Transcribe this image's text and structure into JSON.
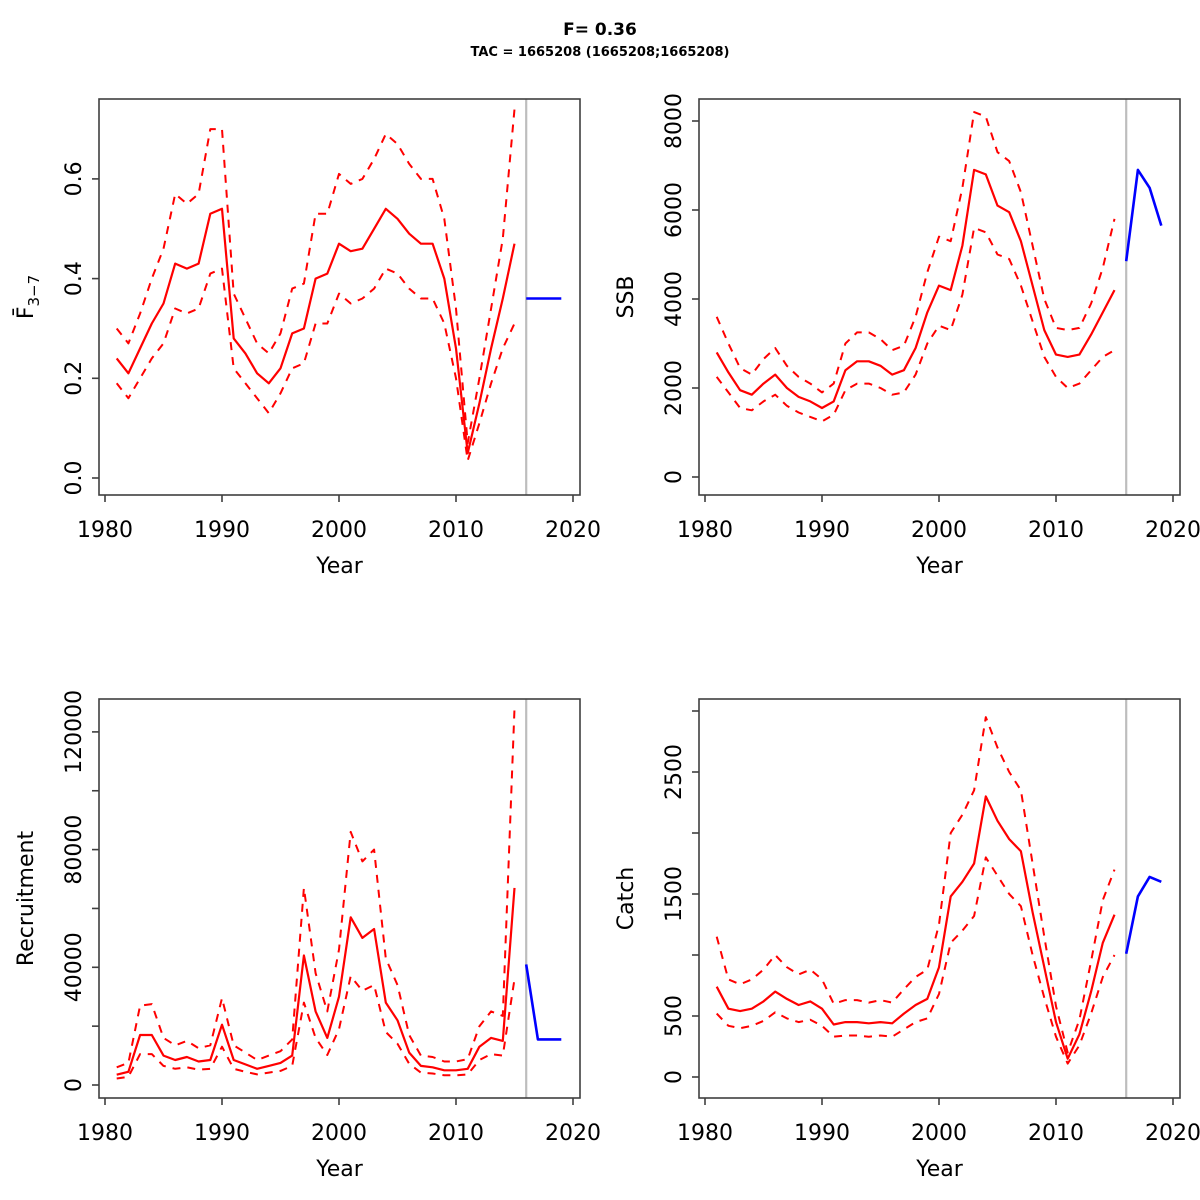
{
  "title": "F= 0.36",
  "subtitle": "TAC = 1665208 (1665208;1665208)",
  "colors": {
    "historical": "#ff0000",
    "forecast": "#0000ff",
    "divider": "#bdbdbd",
    "frame": "#3f3f3f",
    "text": "#000000"
  },
  "chart_data": [
    {
      "type": "line",
      "name": "fbar",
      "ylabel_main": "F̄",
      "ylabel_sub": "3−7",
      "xlabel": "Year",
      "legend_position": "none",
      "grid": false,
      "xlim": [
        1979.5,
        2020.6
      ],
      "ylim": [
        -0.03,
        0.76
      ],
      "xticks": [
        1980,
        1990,
        2000,
        2010,
        2020
      ],
      "yticks": [
        {
          "v": 0.0,
          "label": "0.0"
        },
        {
          "v": 0.2,
          "label": "0.2"
        },
        {
          "v": 0.4,
          "label": "0.4"
        },
        {
          "v": 0.6,
          "label": "0.6"
        }
      ],
      "years": [
        1981,
        1982,
        1983,
        1984,
        1985,
        1986,
        1987,
        1988,
        1989,
        1990,
        1991,
        1992,
        1993,
        1994,
        1995,
        1996,
        1997,
        1998,
        1999,
        2000,
        2001,
        2002,
        2003,
        2004,
        2005,
        2006,
        2007,
        2008,
        2009,
        2010,
        2011,
        2012,
        2013,
        2014,
        2015
      ],
      "median": [
        0.24,
        0.21,
        0.26,
        0.31,
        0.35,
        0.43,
        0.42,
        0.43,
        0.53,
        0.54,
        0.28,
        0.25,
        0.21,
        0.19,
        0.22,
        0.29,
        0.3,
        0.4,
        0.41,
        0.47,
        0.455,
        0.46,
        0.5,
        0.54,
        0.52,
        0.49,
        0.47,
        0.47,
        0.4,
        0.26,
        0.05,
        0.15,
        0.26,
        0.36,
        0.47
      ],
      "upper": [
        0.3,
        0.27,
        0.33,
        0.4,
        0.46,
        0.57,
        0.55,
        0.57,
        0.7,
        0.7,
        0.37,
        0.32,
        0.27,
        0.25,
        0.29,
        0.38,
        0.39,
        0.53,
        0.53,
        0.61,
        0.59,
        0.6,
        0.64,
        0.69,
        0.67,
        0.63,
        0.6,
        0.6,
        0.52,
        0.34,
        0.07,
        0.2,
        0.34,
        0.48,
        0.74
      ],
      "lower": [
        0.19,
        0.16,
        0.2,
        0.24,
        0.27,
        0.34,
        0.33,
        0.34,
        0.41,
        0.42,
        0.22,
        0.19,
        0.16,
        0.13,
        0.17,
        0.22,
        0.23,
        0.31,
        0.31,
        0.37,
        0.35,
        0.36,
        0.38,
        0.42,
        0.41,
        0.38,
        0.36,
        0.36,
        0.31,
        0.2,
        0.035,
        0.11,
        0.19,
        0.26,
        0.31
      ],
      "forecast_years": [
        2016,
        2017,
        2018,
        2019
      ],
      "forecast": [
        0.36,
        0.36,
        0.36,
        0.36
      ],
      "forecast_divider_x": 2016
    },
    {
      "type": "line",
      "name": "ssb",
      "ylabel_main": "SSB",
      "ylabel_sub": "",
      "xlabel": "Year",
      "legend_position": "none",
      "grid": false,
      "xlim": [
        1979.5,
        2020.6
      ],
      "ylim": [
        -400,
        8500
      ],
      "xticks": [
        1980,
        1990,
        2000,
        2010,
        2020
      ],
      "yticks": [
        {
          "v": 0,
          "label": "0"
        },
        {
          "v": 2000,
          "label": "2000"
        },
        {
          "v": 4000,
          "label": "4000"
        },
        {
          "v": 6000,
          "label": "6000"
        },
        {
          "v": 8000,
          "label": "8000"
        }
      ],
      "years": [
        1981,
        1982,
        1983,
        1984,
        1985,
        1986,
        1987,
        1988,
        1989,
        1990,
        1991,
        1992,
        1993,
        1994,
        1995,
        1996,
        1997,
        1998,
        1999,
        2000,
        2001,
        2002,
        2003,
        2004,
        2005,
        2006,
        2007,
        2008,
        2009,
        2010,
        2011,
        2012,
        2013,
        2014,
        2015
      ],
      "median": [
        2800,
        2350,
        1950,
        1850,
        2100,
        2300,
        2000,
        1800,
        1700,
        1550,
        1700,
        2400,
        2600,
        2600,
        2500,
        2300,
        2400,
        2900,
        3700,
        4300,
        4200,
        5200,
        6900,
        6800,
        6100,
        5950,
        5300,
        4300,
        3300,
        2750,
        2700,
        2750,
        3200,
        3700,
        4200
      ],
      "upper": [
        3600,
        3000,
        2450,
        2300,
        2650,
        2900,
        2500,
        2250,
        2100,
        1900,
        2100,
        3000,
        3250,
        3250,
        3100,
        2850,
        2950,
        3600,
        4600,
        5400,
        5300,
        6500,
        8200,
        8100,
        7300,
        7100,
        6400,
        5200,
        4000,
        3350,
        3300,
        3350,
        3900,
        4700,
        5800
      ],
      "lower": [
        2250,
        1900,
        1550,
        1500,
        1700,
        1850,
        1600,
        1450,
        1350,
        1250,
        1400,
        1950,
        2100,
        2100,
        2000,
        1850,
        1900,
        2300,
        3000,
        3400,
        3300,
        4100,
        5600,
        5500,
        5000,
        4900,
        4300,
        3500,
        2700,
        2250,
        2000,
        2100,
        2400,
        2700,
        2850
      ],
      "forecast_years": [
        2016,
        2017,
        2018,
        2019
      ],
      "forecast": [
        4850,
        6900,
        6500,
        5650
      ],
      "forecast_divider_x": 2016
    },
    {
      "type": "line",
      "name": "recruitment",
      "ylabel_main": "Recruitment",
      "ylabel_sub": "",
      "xlabel": "Year",
      "legend_position": "none",
      "grid": false,
      "xlim": [
        1979.5,
        2020.6
      ],
      "ylim": [
        -5000,
        131000
      ],
      "xticks": [
        1980,
        1990,
        2000,
        2010,
        2020
      ],
      "yticks": [
        {
          "v": 0,
          "label": "0"
        },
        {
          "v": 20000,
          "label": ""
        },
        {
          "v": 40000,
          "label": "40000"
        },
        {
          "v": 60000,
          "label": ""
        },
        {
          "v": 80000,
          "label": "80000"
        },
        {
          "v": 100000,
          "label": ""
        },
        {
          "v": 120000,
          "label": "120000"
        }
      ],
      "years": [
        1981,
        1982,
        1983,
        1984,
        1985,
        1986,
        1987,
        1988,
        1989,
        1990,
        1991,
        1992,
        1993,
        1994,
        1995,
        1996,
        1997,
        1998,
        1999,
        2000,
        2001,
        2002,
        2003,
        2004,
        2005,
        2006,
        2007,
        2008,
        2009,
        2010,
        2011,
        2012,
        2013,
        2014,
        2015
      ],
      "median": [
        3500,
        4500,
        17000,
        17000,
        10000,
        8500,
        9500,
        8000,
        8500,
        20500,
        8500,
        7000,
        5500,
        6500,
        7500,
        10000,
        44000,
        25000,
        16000,
        30000,
        57000,
        50000,
        53000,
        28000,
        22000,
        11000,
        6500,
        6000,
        5000,
        5000,
        5500,
        13000,
        16000,
        15000,
        67000
      ],
      "upper": [
        6000,
        7500,
        27000,
        27500,
        16000,
        13500,
        15000,
        12500,
        13500,
        29500,
        13500,
        11000,
        8500,
        10000,
        11500,
        15500,
        67000,
        38000,
        25000,
        46000,
        86000,
        76000,
        80000,
        43000,
        34000,
        17000,
        10000,
        9500,
        8000,
        8000,
        8800,
        20000,
        25000,
        23500,
        128000
      ],
      "lower": [
        2200,
        2800,
        10500,
        10500,
        6500,
        5500,
        6000,
        5200,
        5500,
        13000,
        5500,
        4500,
        3600,
        4200,
        4800,
        6500,
        28000,
        16000,
        10200,
        19000,
        37000,
        32000,
        34000,
        18000,
        14000,
        7200,
        4200,
        3900,
        3300,
        3300,
        3600,
        8500,
        10500,
        10000,
        36000
      ],
      "forecast_years": [
        2016,
        2017,
        2018,
        2019
      ],
      "forecast": [
        41000,
        15500,
        15500,
        15500
      ],
      "forecast_divider_x": 2016
    },
    {
      "type": "line",
      "name": "catch",
      "ylabel_main": "Catch",
      "ylabel_sub": "",
      "xlabel": "Year",
      "legend_position": "none",
      "grid": false,
      "xlim": [
        1979.5,
        2020.6
      ],
      "ylim": [
        -190,
        3100
      ],
      "xticks": [
        1980,
        1990,
        2000,
        2010,
        2020
      ],
      "yticks": [
        {
          "v": 0,
          "label": "0"
        },
        {
          "v": 500,
          "label": "500"
        },
        {
          "v": 1000,
          "label": ""
        },
        {
          "v": 1500,
          "label": "1500"
        },
        {
          "v": 2000,
          "label": ""
        },
        {
          "v": 2500,
          "label": "2500"
        },
        {
          "v": 3000,
          "label": ""
        }
      ],
      "years": [
        1981,
        1982,
        1983,
        1984,
        1985,
        1986,
        1987,
        1988,
        1989,
        1990,
        1991,
        1992,
        1993,
        1994,
        1995,
        1996,
        1997,
        1998,
        1999,
        2000,
        2001,
        2002,
        2003,
        2004,
        2005,
        2006,
        2007,
        2008,
        2009,
        2010,
        2011,
        2012,
        2013,
        2014,
        2015
      ],
      "median": [
        740,
        560,
        540,
        560,
        620,
        700,
        640,
        590,
        620,
        560,
        430,
        450,
        450,
        440,
        450,
        440,
        520,
        590,
        640,
        900,
        1480,
        1600,
        1750,
        2300,
        2100,
        1950,
        1850,
        1350,
        900,
        450,
        150,
        350,
        700,
        1100,
        1330
      ],
      "upper": [
        1150,
        800,
        760,
        800,
        880,
        1000,
        900,
        840,
        880,
        800,
        600,
        630,
        630,
        610,
        630,
        610,
        720,
        820,
        880,
        1250,
        2000,
        2150,
        2350,
        2950,
        2700,
        2500,
        2350,
        1750,
        1150,
        580,
        200,
        470,
        950,
        1450,
        1700
      ],
      "lower": [
        520,
        420,
        400,
        420,
        460,
        530,
        480,
        450,
        470,
        420,
        330,
        340,
        340,
        330,
        340,
        330,
        390,
        450,
        480,
        680,
        1100,
        1200,
        1320,
        1800,
        1650,
        1500,
        1400,
        1000,
        650,
        330,
        110,
        260,
        520,
        820,
        1000
      ],
      "forecast_years": [
        2016,
        2017,
        2018,
        2019
      ],
      "forecast": [
        1010,
        1480,
        1640,
        1600
      ],
      "forecast_divider_x": 2016
    }
  ]
}
